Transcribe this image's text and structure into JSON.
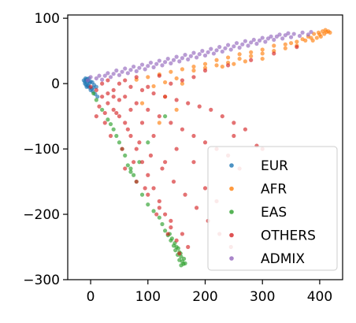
{
  "chart_data": {
    "type": "scatter",
    "title": "",
    "xlabel": "",
    "ylabel": "",
    "xlim": [
      -40,
      440
    ],
    "ylim": [
      -300,
      105
    ],
    "xticks": [
      0,
      100,
      200,
      300,
      400
    ],
    "yticks": [
      -300,
      -200,
      -100,
      0,
      100
    ],
    "xtick_labels": [
      "0",
      "100",
      "200",
      "300",
      "400"
    ],
    "ytick_labels": [
      "−300",
      "−200",
      "−100",
      "0",
      "100"
    ],
    "grid": false,
    "legend_position": "lower-right",
    "series": [
      {
        "name": "EUR",
        "color": "#1f77b4",
        "points": [
          [
            -12,
            5
          ],
          [
            -10,
            3
          ],
          [
            -8,
            6
          ],
          [
            -6,
            2
          ],
          [
            -4,
            4
          ],
          [
            -2,
            1
          ],
          [
            0,
            3
          ],
          [
            -10,
            0
          ],
          [
            -8,
            -2
          ],
          [
            -5,
            -4
          ],
          [
            -2,
            -6
          ],
          [
            2,
            -8
          ],
          [
            -6,
            7
          ],
          [
            -3,
            8
          ],
          [
            4,
            -12
          ],
          [
            8,
            -16
          ],
          [
            12,
            -20
          ],
          [
            6,
            -2
          ],
          [
            10,
            -5
          ],
          [
            0,
            -10
          ],
          [
            -4,
            -3
          ],
          [
            3,
            2
          ],
          [
            -9,
            8
          ],
          [
            5,
            -6
          ],
          [
            -7,
            -5
          ]
        ]
      },
      {
        "name": "AFR",
        "color": "#ff7f0e",
        "points": [
          [
            380,
            72
          ],
          [
            390,
            76
          ],
          [
            398,
            78
          ],
          [
            405,
            80
          ],
          [
            410,
            82
          ],
          [
            415,
            80
          ],
          [
            400,
            75
          ],
          [
            385,
            70
          ],
          [
            370,
            68
          ],
          [
            360,
            64
          ],
          [
            340,
            60
          ],
          [
            320,
            58
          ],
          [
            300,
            52
          ],
          [
            280,
            48
          ],
          [
            260,
            45
          ],
          [
            240,
            40
          ],
          [
            220,
            36
          ],
          [
            200,
            30
          ],
          [
            180,
            26
          ],
          [
            160,
            22
          ],
          [
            140,
            18
          ],
          [
            120,
            14
          ],
          [
            100,
            10
          ],
          [
            80,
            6
          ],
          [
            360,
            58
          ],
          [
            340,
            54
          ],
          [
            320,
            50
          ],
          [
            300,
            46
          ],
          [
            280,
            42
          ],
          [
            260,
            38
          ],
          [
            240,
            32
          ],
          [
            220,
            28
          ],
          [
            200,
            24
          ],
          [
            180,
            20
          ],
          [
            395,
            70
          ],
          [
            408,
            76
          ],
          [
            412,
            79
          ],
          [
            418,
            78
          ],
          [
            402,
            72
          ],
          [
            388,
            66
          ],
          [
            150,
            8
          ],
          [
            130,
            2
          ],
          [
            110,
            -4
          ],
          [
            130,
            -20
          ],
          [
            150,
            -40
          ],
          [
            120,
            -60
          ],
          [
            90,
            -30
          ],
          [
            160,
            0
          ],
          [
            300,
            38
          ],
          [
            250,
            30
          ],
          [
            270,
            34
          ],
          [
            230,
            26
          ],
          [
            350,
            62
          ],
          [
            375,
            66
          ]
        ]
      },
      {
        "name": "EAS",
        "color": "#2ca02c",
        "points": [
          [
            150,
            -250
          ],
          [
            155,
            -258
          ],
          [
            158,
            -265
          ],
          [
            160,
            -272
          ],
          [
            162,
            -276
          ],
          [
            158,
            -278
          ],
          [
            155,
            -270
          ],
          [
            152,
            -262
          ],
          [
            148,
            -255
          ],
          [
            145,
            -248
          ],
          [
            140,
            -240
          ],
          [
            135,
            -232
          ],
          [
            130,
            -225
          ],
          [
            125,
            -215
          ],
          [
            120,
            -205
          ],
          [
            110,
            -195
          ],
          [
            100,
            -185
          ],
          [
            90,
            -170
          ],
          [
            80,
            -150
          ],
          [
            75,
            -140
          ],
          [
            70,
            -130
          ],
          [
            60,
            -110
          ],
          [
            50,
            -90
          ],
          [
            40,
            -70
          ],
          [
            30,
            -55
          ],
          [
            20,
            -40
          ],
          [
            10,
            -25
          ],
          [
            5,
            -15
          ],
          [
            100,
            -90
          ],
          [
            85,
            -120
          ],
          [
            165,
            -275
          ],
          [
            163,
            -268
          ],
          [
            157,
            -260
          ],
          [
            153,
            -252
          ],
          [
            147,
            -244
          ],
          [
            142,
            -237
          ],
          [
            138,
            -230
          ],
          [
            70,
            -135
          ],
          [
            65,
            -125
          ],
          [
            55,
            -100
          ],
          [
            130,
            -50
          ],
          [
            45,
            -80
          ],
          [
            35,
            -62
          ]
        ]
      },
      {
        "name": "OTHERS",
        "color": "#d62728",
        "points": [
          [
            0,
            -5
          ],
          [
            10,
            -10
          ],
          [
            20,
            -20
          ],
          [
            30,
            -30
          ],
          [
            40,
            -40
          ],
          [
            50,
            -50
          ],
          [
            60,
            -60
          ],
          [
            70,
            -80
          ],
          [
            80,
            -100
          ],
          [
            90,
            -120
          ],
          [
            100,
            -140
          ],
          [
            110,
            -160
          ],
          [
            120,
            -180
          ],
          [
            130,
            -200
          ],
          [
            140,
            -220
          ],
          [
            150,
            -240
          ],
          [
            20,
            0
          ],
          [
            40,
            -10
          ],
          [
            60,
            -20
          ],
          [
            80,
            -30
          ],
          [
            100,
            -40
          ],
          [
            120,
            -50
          ],
          [
            140,
            -60
          ],
          [
            160,
            -70
          ],
          [
            180,
            -80
          ],
          [
            200,
            -90
          ],
          [
            220,
            -100
          ],
          [
            240,
            -110
          ],
          [
            30,
            5
          ],
          [
            50,
            0
          ],
          [
            70,
            -5
          ],
          [
            90,
            -10
          ],
          [
            110,
            -15
          ],
          [
            130,
            -20
          ],
          [
            150,
            -25
          ],
          [
            170,
            -30
          ],
          [
            190,
            -35
          ],
          [
            210,
            -40
          ],
          [
            230,
            -50
          ],
          [
            250,
            -60
          ],
          [
            270,
            -70
          ],
          [
            290,
            -95
          ],
          [
            45,
            -45
          ],
          [
            65,
            -70
          ],
          [
            85,
            -90
          ],
          [
            105,
            -110
          ],
          [
            125,
            -130
          ],
          [
            145,
            -150
          ],
          [
            165,
            -170
          ],
          [
            185,
            -190
          ],
          [
            205,
            -210
          ],
          [
            225,
            -230
          ],
          [
            245,
            -250
          ],
          [
            25,
            -60
          ],
          [
            35,
            -80
          ],
          [
            55,
            -100
          ],
          [
            75,
            -120
          ],
          [
            95,
            -160
          ],
          [
            115,
            -200
          ],
          [
            135,
            -230
          ],
          [
            155,
            -260
          ],
          [
            200,
            20
          ],
          [
            240,
            28
          ],
          [
            280,
            36
          ],
          [
            320,
            46
          ],
          [
            360,
            56
          ],
          [
            180,
            10
          ],
          [
            160,
            5
          ],
          [
            140,
            0
          ],
          [
            100,
            -5
          ],
          [
            60,
            5
          ],
          [
            80,
            10
          ],
          [
            120,
            12
          ],
          [
            150,
            -100
          ],
          [
            130,
            -120
          ],
          [
            110,
            -80
          ],
          [
            90,
            -60
          ],
          [
            70,
            -40
          ],
          [
            50,
            -25
          ],
          [
            30,
            -15
          ],
          [
            15,
            -35
          ],
          [
            25,
            -45
          ],
          [
            60,
            -130
          ],
          [
            80,
            -150
          ],
          [
            100,
            -170
          ],
          [
            120,
            -190
          ],
          [
            140,
            -210
          ],
          [
            160,
            -230
          ],
          [
            170,
            -250
          ],
          [
            200,
            -160
          ],
          [
            220,
            -180
          ],
          [
            260,
            -130
          ],
          [
            300,
            -100
          ],
          [
            250,
            -80
          ],
          [
            180,
            -120
          ],
          [
            40,
            -20
          ],
          [
            10,
            -50
          ]
        ]
      },
      {
        "name": "ADMIX",
        "color": "#9467bd",
        "points": [
          [
            -5,
            5
          ],
          [
            10,
            8
          ],
          [
            25,
            12
          ],
          [
            40,
            15
          ],
          [
            55,
            18
          ],
          [
            70,
            21
          ],
          [
            85,
            24
          ],
          [
            100,
            27
          ],
          [
            115,
            30
          ],
          [
            130,
            33
          ],
          [
            145,
            36
          ],
          [
            160,
            39
          ],
          [
            175,
            42
          ],
          [
            190,
            45
          ],
          [
            205,
            48
          ],
          [
            220,
            51
          ],
          [
            235,
            54
          ],
          [
            250,
            57
          ],
          [
            265,
            60
          ],
          [
            280,
            63
          ],
          [
            295,
            66
          ],
          [
            310,
            69
          ],
          [
            325,
            72
          ],
          [
            340,
            74
          ],
          [
            355,
            76
          ],
          [
            370,
            78
          ],
          [
            385,
            79
          ],
          [
            0,
            10
          ],
          [
            20,
            6
          ],
          [
            35,
            10
          ],
          [
            50,
            13
          ],
          [
            65,
            16
          ],
          [
            80,
            19
          ],
          [
            95,
            22
          ],
          [
            110,
            25
          ],
          [
            125,
            28
          ],
          [
            140,
            31
          ],
          [
            155,
            34
          ],
          [
            170,
            37
          ],
          [
            185,
            40
          ],
          [
            200,
            43
          ],
          [
            215,
            46
          ],
          [
            230,
            49
          ],
          [
            245,
            52
          ],
          [
            260,
            55
          ],
          [
            275,
            58
          ],
          [
            290,
            61
          ],
          [
            305,
            64
          ],
          [
            320,
            67
          ],
          [
            335,
            69
          ],
          [
            350,
            71
          ],
          [
            365,
            73
          ],
          [
            380,
            75
          ],
          [
            15,
            12
          ],
          [
            30,
            16
          ],
          [
            45,
            20
          ],
          [
            60,
            23
          ],
          [
            75,
            26
          ],
          [
            90,
            29
          ],
          [
            105,
            32
          ],
          [
            120,
            35
          ],
          [
            135,
            38
          ],
          [
            150,
            41
          ],
          [
            165,
            44
          ],
          [
            180,
            47
          ],
          [
            195,
            50
          ],
          [
            210,
            53
          ],
          [
            225,
            56
          ],
          [
            240,
            59
          ],
          [
            255,
            62
          ],
          [
            270,
            65
          ],
          [
            285,
            67
          ],
          [
            300,
            70
          ],
          [
            315,
            72
          ],
          [
            330,
            75
          ],
          [
            345,
            77
          ]
        ]
      }
    ]
  }
}
